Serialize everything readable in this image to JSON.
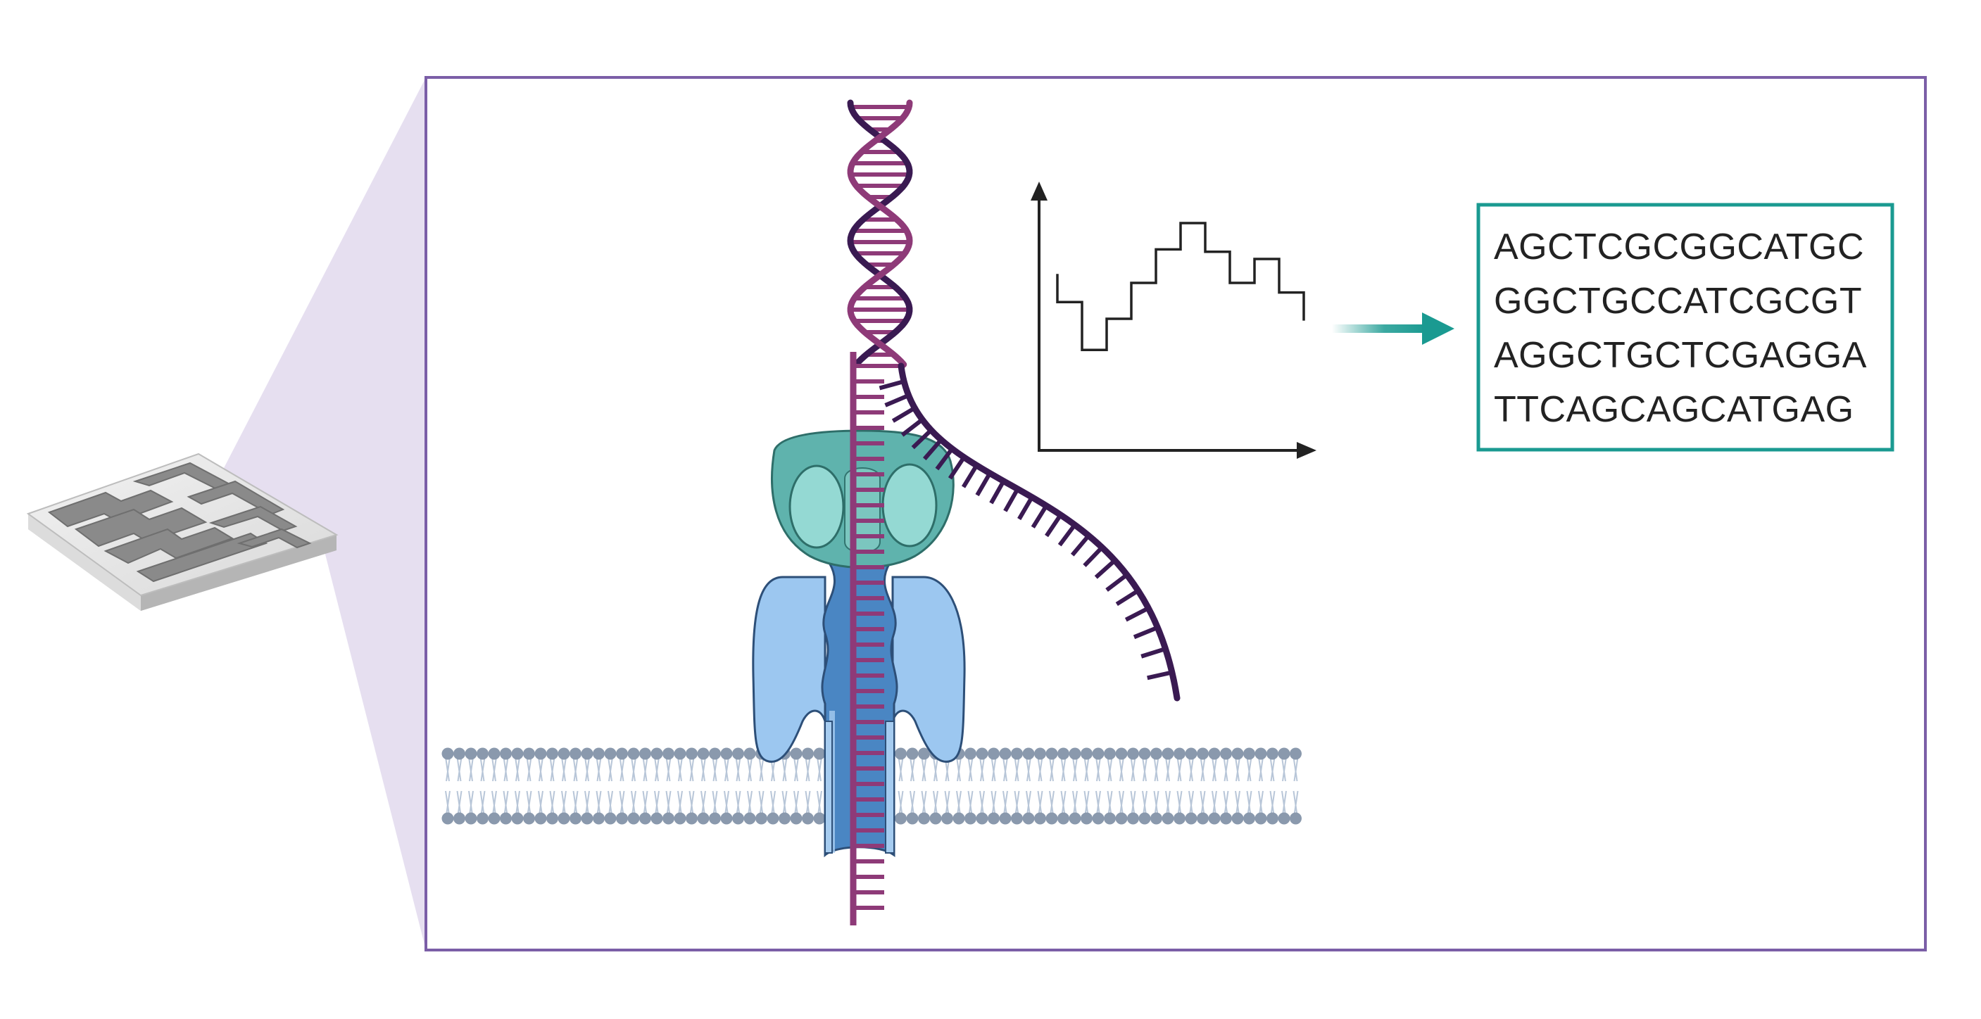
{
  "figure": {
    "colors": {
      "frame": "#7b5ea7",
      "zoom_wedge": "#e6dff0",
      "strand_magenta": "#8e3a78",
      "strand_dark": "#3a1a52",
      "pore_teal": "#5fb3ad",
      "pore_teal_light": "#94d9d3",
      "pore_blue": "#9cc7f0",
      "pore_blue_dark": "#4a86c3",
      "membrane_head": "#8a99ad",
      "signal_arrow": "#1a9a91",
      "sequence_border": "#1a9a91",
      "text": "#222222"
    },
    "icons": {
      "chip": "flow-cell-chip-icon",
      "pore": "nanopore-protein-icon",
      "membrane": "lipid-bilayer-icon",
      "dna": "dna-double-helix-icon",
      "trace": "current-trace-icon",
      "arrow": "right-arrow-icon"
    },
    "signal_trace": {
      "levels": [
        0.62,
        0.42,
        0.55,
        0.7,
        0.84,
        0.95,
        0.83,
        0.7,
        0.8,
        0.66
      ]
    },
    "sequence": {
      "lines": [
        "AGCTCGCGGCATGC",
        "GGCTGCCATCGCGT",
        "AGGCTGCTCGAGGA",
        "TTCAGCAGCATGAG"
      ]
    }
  }
}
